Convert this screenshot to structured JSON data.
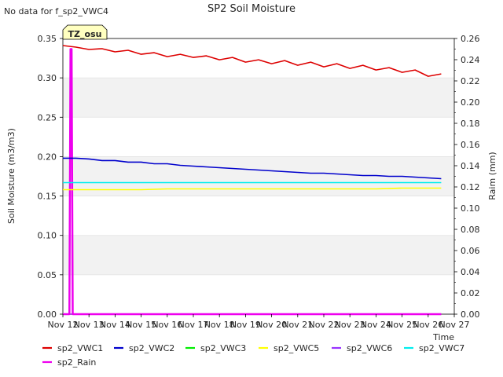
{
  "note": "No data for f_sp2_VWC4",
  "chart_data": {
    "type": "line",
    "title": "SP2 Soil Moisture",
    "badge": "TZ_osu",
    "xlabel": "Time",
    "ylabel": "Soil Moisture (m3/m3)",
    "y2label": "Raim (mm)",
    "xlim": [
      "2023-11-12",
      "2023-11-27"
    ],
    "ylim": [
      0,
      0.35
    ],
    "y2lim": [
      0,
      0.26
    ],
    "x_ticks": [
      "Nov 12",
      "Nov 13",
      "Nov 14",
      "Nov 15",
      "Nov 16",
      "Nov 17",
      "Nov 18",
      "Nov 19",
      "Nov 20",
      "Nov 21",
      "Nov 22",
      "Nov 23",
      "Nov 24",
      "Nov 25",
      "Nov 26",
      "Nov 27"
    ],
    "y_ticks": [
      "0.00",
      "0.05",
      "0.10",
      "0.15",
      "0.20",
      "0.25",
      "0.30",
      "0.35"
    ],
    "y2_ticks": [
      "0.00",
      "0.02",
      "0.04",
      "0.06",
      "0.08",
      "0.10",
      "0.12",
      "0.14",
      "0.16",
      "0.18",
      "0.20",
      "0.22",
      "0.24",
      "0.26"
    ],
    "grid_bands": true,
    "series": [
      {
        "name": "sp2_VWC1",
        "color": "#dd0000",
        "axis": "left",
        "x": [
          "2023-11-12",
          "2023-11-12 12:00",
          "2023-11-13",
          "2023-11-13 12:00",
          "2023-11-14",
          "2023-11-14 12:00",
          "2023-11-15",
          "2023-11-15 12:00",
          "2023-11-16",
          "2023-11-16 12:00",
          "2023-11-17",
          "2023-11-17 12:00",
          "2023-11-18",
          "2023-11-18 12:00",
          "2023-11-19",
          "2023-11-19 12:00",
          "2023-11-20",
          "2023-11-20 12:00",
          "2023-11-21",
          "2023-11-21 12:00",
          "2023-11-22",
          "2023-11-22 12:00",
          "2023-11-23",
          "2023-11-23 12:00",
          "2023-11-24",
          "2023-11-24 12:00",
          "2023-11-25",
          "2023-11-25 12:00",
          "2023-11-26",
          "2023-11-26 12:00"
        ],
        "y": [
          0.341,
          0.339,
          0.336,
          0.337,
          0.333,
          0.335,
          0.33,
          0.332,
          0.327,
          0.33,
          0.326,
          0.328,
          0.323,
          0.326,
          0.32,
          0.323,
          0.318,
          0.322,
          0.316,
          0.32,
          0.314,
          0.318,
          0.312,
          0.316,
          0.31,
          0.313,
          0.307,
          0.31,
          0.302,
          0.305
        ]
      },
      {
        "name": "sp2_VWC2",
        "color": "#0000cc",
        "axis": "left",
        "x": [
          "2023-11-12",
          "2023-11-12 12:00",
          "2023-11-13",
          "2023-11-13 12:00",
          "2023-11-14",
          "2023-11-14 12:00",
          "2023-11-15",
          "2023-11-15 12:00",
          "2023-11-16",
          "2023-11-16 12:00",
          "2023-11-17",
          "2023-11-17 12:00",
          "2023-11-18",
          "2023-11-18 12:00",
          "2023-11-19",
          "2023-11-19 12:00",
          "2023-11-20",
          "2023-11-20 12:00",
          "2023-11-21",
          "2023-11-21 12:00",
          "2023-11-22",
          "2023-11-22 12:00",
          "2023-11-23",
          "2023-11-23 12:00",
          "2023-11-24",
          "2023-11-24 12:00",
          "2023-11-25",
          "2023-11-25 12:00",
          "2023-11-26",
          "2023-11-26 12:00"
        ],
        "y": [
          0.198,
          0.198,
          0.197,
          0.195,
          0.195,
          0.193,
          0.193,
          0.191,
          0.191,
          0.189,
          0.188,
          0.187,
          0.186,
          0.185,
          0.184,
          0.183,
          0.182,
          0.181,
          0.18,
          0.179,
          0.179,
          0.178,
          0.177,
          0.176,
          0.176,
          0.175,
          0.175,
          0.174,
          0.173,
          0.172
        ]
      },
      {
        "name": "sp2_VWC3",
        "color": "#00ee00",
        "axis": "left",
        "x": [
          "2023-11-12",
          "2023-11-26 12:00"
        ],
        "y": [
          0,
          0
        ]
      },
      {
        "name": "sp2_VWC5",
        "color": "#ffff00",
        "axis": "left",
        "x": [
          "2023-11-12",
          "2023-11-13",
          "2023-11-14",
          "2023-11-15",
          "2023-11-16",
          "2023-11-17",
          "2023-11-18",
          "2023-11-19",
          "2023-11-20",
          "2023-11-21",
          "2023-11-22",
          "2023-11-23",
          "2023-11-24",
          "2023-11-25",
          "2023-11-26",
          "2023-11-26 12:00"
        ],
        "y": [
          0.158,
          0.158,
          0.158,
          0.158,
          0.159,
          0.159,
          0.159,
          0.159,
          0.159,
          0.159,
          0.159,
          0.159,
          0.159,
          0.16,
          0.16,
          0.16
        ]
      },
      {
        "name": "sp2_VWC6",
        "color": "#9933ff",
        "axis": "left",
        "x": [
          "2023-11-12",
          "2023-11-26 12:00"
        ],
        "y": [
          0,
          0
        ]
      },
      {
        "name": "sp2_VWC7",
        "color": "#00eeee",
        "axis": "left",
        "x": [
          "2023-11-12",
          "2023-11-26 12:00"
        ],
        "y": [
          0.167,
          0.167
        ]
      },
      {
        "name": "sp2_Rain",
        "color": "#ee00ee",
        "axis": "right",
        "x": [
          "2023-11-12",
          "2023-11-12 06:00",
          "2023-11-12 07:00",
          "2023-11-12 08:00",
          "2023-11-12 09:00",
          "2023-11-26 12:00"
        ],
        "y": [
          0,
          0,
          0.25,
          0.25,
          0,
          0
        ]
      }
    ]
  }
}
